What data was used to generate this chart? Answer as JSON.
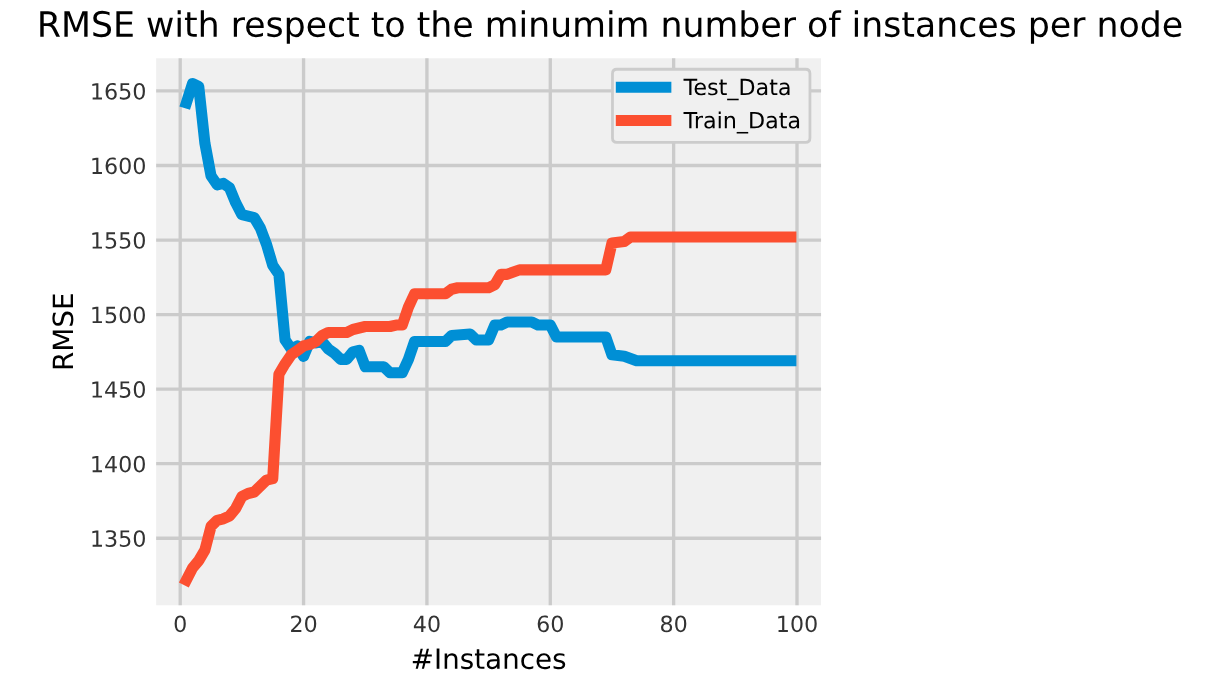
{
  "chart_data": {
    "type": "line",
    "title": "RMSE with respect to the minumim number of instances per node",
    "xlabel": "#Instances",
    "ylabel": "RMSE",
    "xlim": [
      -3.9,
      103.9
    ],
    "ylim": [
      1305,
      1672
    ],
    "xticks": [
      0,
      20,
      40,
      60,
      80,
      100
    ],
    "yticks": [
      1350,
      1400,
      1450,
      1500,
      1550,
      1600,
      1650
    ],
    "grid": true,
    "legend": "top right",
    "line_style": "solid",
    "series": [
      {
        "name": "Test_Data",
        "color": "#008fd5",
        "x": [
          1,
          2,
          3,
          4,
          5,
          6,
          7,
          8,
          9,
          10,
          11,
          12,
          13,
          14,
          15,
          16,
          17,
          18,
          19,
          20,
          21,
          22,
          23,
          24,
          25,
          26,
          27,
          28,
          29,
          30,
          33,
          34,
          36,
          37,
          38,
          43,
          44,
          47,
          48,
          50,
          51,
          52,
          53,
          57,
          58,
          60,
          61,
          69,
          70,
          72,
          74,
          99
        ],
        "values": [
          1642,
          1655,
          1653,
          1615,
          1593,
          1587,
          1588,
          1585,
          1575,
          1567,
          1566,
          1565,
          1558,
          1547,
          1533,
          1527,
          1483,
          1477,
          1479,
          1472,
          1482,
          1481,
          1482,
          1477,
          1474,
          1470,
          1470,
          1475,
          1476,
          1465,
          1465,
          1461,
          1461,
          1470,
          1482,
          1482,
          1486,
          1487,
          1483,
          1483,
          1493,
          1493,
          1495,
          1495,
          1493,
          1493,
          1485,
          1485,
          1473,
          1472,
          1469,
          1469
        ]
      },
      {
        "name": "Train_Data",
        "color": "#fc4f30",
        "x": [
          1,
          2,
          3,
          4,
          5,
          6,
          7,
          8,
          9,
          10,
          11,
          12,
          13,
          14,
          15,
          16,
          17,
          18,
          19,
          20,
          21,
          22,
          23,
          24,
          27,
          28,
          29,
          30,
          34,
          35,
          36,
          37,
          38,
          43,
          44,
          45,
          50,
          51,
          52,
          53,
          55,
          69,
          70,
          72,
          73,
          99
        ],
        "values": [
          1322,
          1330,
          1335,
          1342,
          1358,
          1362,
          1363,
          1365,
          1370,
          1378,
          1380,
          1381,
          1385,
          1389,
          1390,
          1460,
          1467,
          1473,
          1476,
          1479,
          1480,
          1482,
          1486,
          1488,
          1488,
          1490,
          1491,
          1492,
          1492,
          1493,
          1493,
          1505,
          1514,
          1514,
          1517,
          1518,
          1518,
          1520,
          1527,
          1527,
          1530,
          1530,
          1548,
          1549,
          1552,
          1552
        ]
      }
    ]
  }
}
